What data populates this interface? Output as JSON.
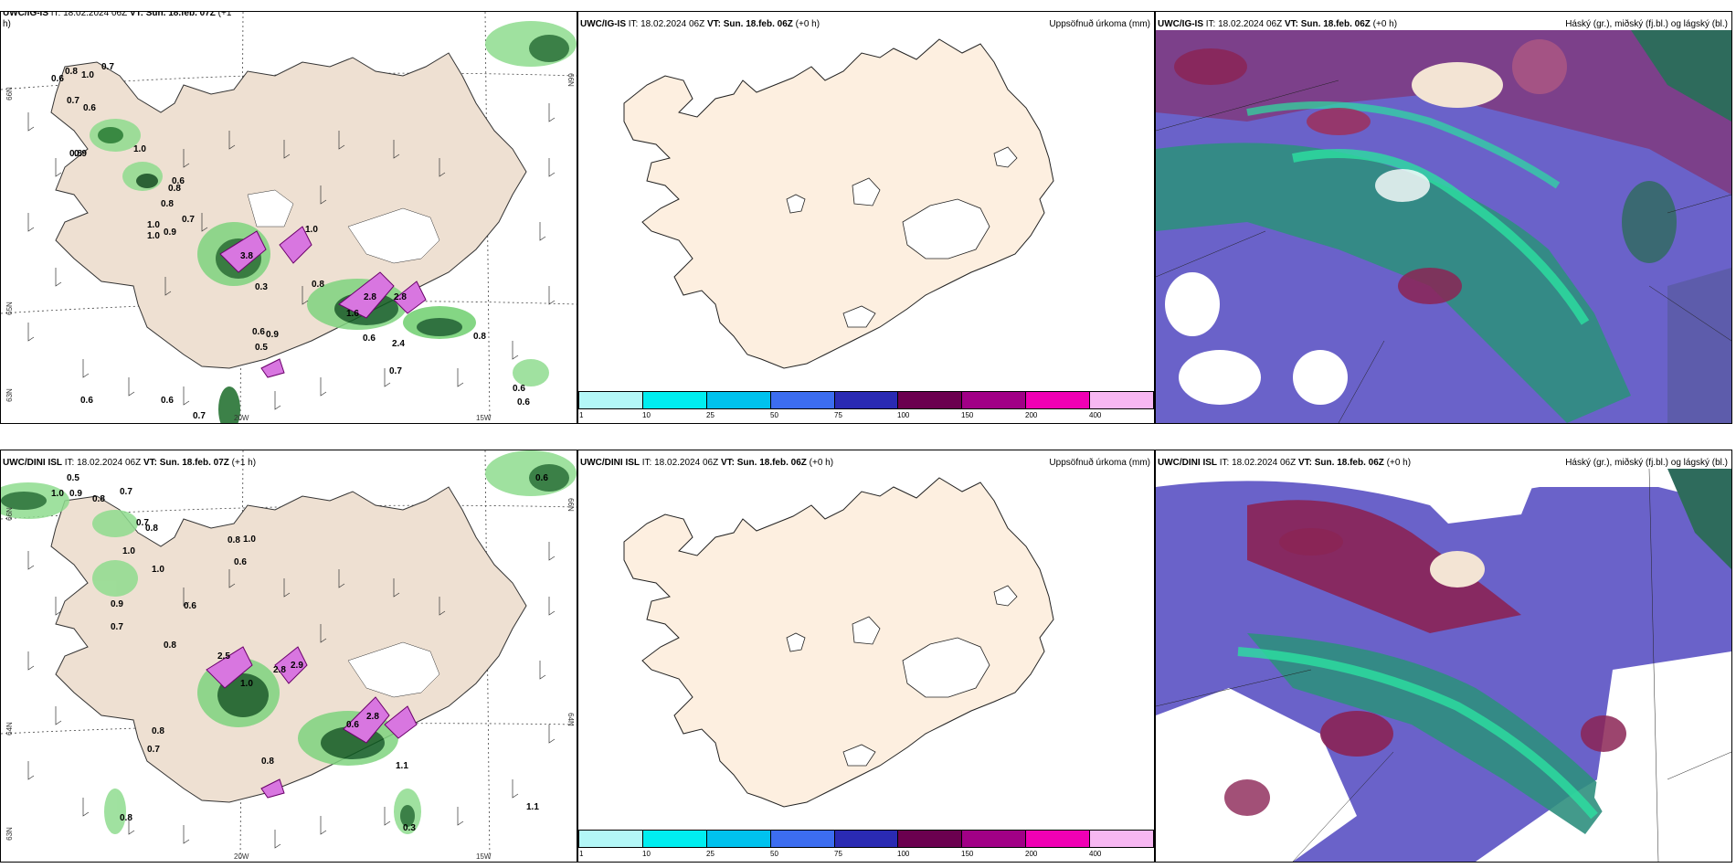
{
  "row1": {
    "left": {
      "model": "UWC/IG-IS",
      "it_label": "IT:",
      "it_value": "18.02.2024 06Z",
      "vt_label": "VT:",
      "vt_value": "Sun. 18.feb. 07Z",
      "offset": "(+1",
      "offset_tail": "h)"
    },
    "middle": {
      "model": "UWC/IG-IS",
      "it_label": "IT:",
      "it_value": "18.02.2024 06Z",
      "vt_label": "VT:",
      "vt_value": "Sun. 18.feb. 06Z",
      "offset": "(+0 h)",
      "right_title": "Uppsöfnuð úrkoma (mm)"
    },
    "right": {
      "model": "UWC/IG-IS",
      "it_label": "IT:",
      "it_value": "18.02.2024 06Z",
      "vt_label": "VT:",
      "vt_value": "Sun. 18.feb. 06Z",
      "offset": "(+0 h)",
      "right_title": "Háský (gr.), miðský (fj.bl.) og lágský (bl.)"
    }
  },
  "row2": {
    "left": {
      "model": "UWC/DINI ISL",
      "it_label": "IT:",
      "it_value": "18.02.2024 06Z",
      "vt_label": "VT:",
      "vt_value": "Sun. 18.feb. 07Z",
      "offset": "(+1 h)"
    },
    "middle": {
      "model": "UWC/DINI ISL",
      "it_label": "IT:",
      "it_value": "18.02.2024 06Z",
      "vt_label": "VT:",
      "vt_value": "Sun. 18.feb. 06Z",
      "offset": "(+0 h)",
      "right_title": "Uppsöfnuð úrkoma (mm)"
    },
    "right": {
      "model": "UWC/DINI ISL",
      "it_label": "IT:",
      "it_value": "18.02.2024 06Z",
      "vt_label": "VT:",
      "vt_value": "Sun. 18.feb. 06Z",
      "offset": "(+0 h)",
      "right_title": "Háský (gr.), miðský (fj.bl.) og lágský (bl.)"
    }
  },
  "colorbar": {
    "ticks": [
      "1",
      "10",
      "25",
      "50",
      "75",
      "100",
      "150",
      "200",
      "400"
    ],
    "colors": [
      "#b3f7f7",
      "#00eef0",
      "#00c2ee",
      "#3c6df0",
      "#2a2ab3",
      "#6b004f",
      "#a10086",
      "#f000b4",
      "#f7b7f2"
    ]
  },
  "coords": {
    "lat_66": "66N",
    "lat_64": "64N",
    "lat_65": "65N",
    "lon_20": "20W",
    "lon_15": "15W",
    "lat_63": "63N"
  },
  "precip_labels_top": [
    "0.6",
    "0.8",
    "1.0",
    "0.7",
    "0.6",
    "0.8",
    "0.7",
    "0.9",
    "1.0",
    "1.0",
    "0.6",
    "0.8",
    "0.7",
    "1.0",
    "0.9",
    "0.8",
    "3.8",
    "1.0",
    "2.8",
    "0.3",
    "0.8",
    "2.8",
    "1.6",
    "2.4",
    "0.6",
    "0.5",
    "0.9",
    "0.7",
    "0.6",
    "0.6",
    "0.7",
    "0.6",
    "0.8",
    "0.6",
    "0.6"
  ],
  "precip_labels_bottom": [
    "0.5",
    "1.0",
    "0.9",
    "0.8",
    "0.7",
    "0.8",
    "1.0",
    "0.7",
    "1.0",
    "0.8",
    "0.6",
    "0.8",
    "0.9",
    "1.0",
    "0.7",
    "2.9",
    "1.0",
    "2.8",
    "2.5",
    "0.6",
    "2.8",
    "1.1",
    "0.8",
    "0.8",
    "0.6",
    "0.7",
    "0.6",
    "1.1",
    "0.3",
    "0.8"
  ],
  "wind_icon": "wind-barb-icon"
}
